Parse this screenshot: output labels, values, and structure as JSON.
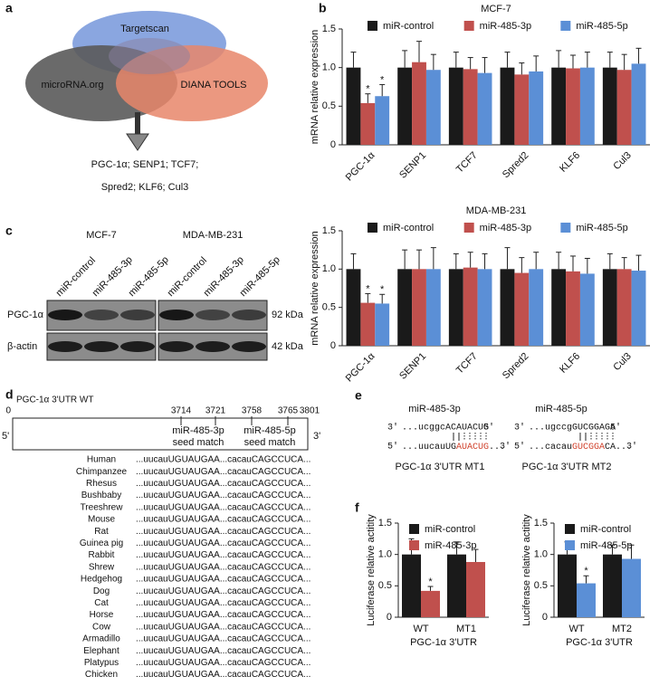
{
  "panel_labels": [
    "a",
    "b",
    "c",
    "d",
    "e",
    "f"
  ],
  "venn": {
    "sets": [
      "Targetscan",
      "microRNA.org",
      "DIANA TOOLS"
    ],
    "result": [
      "PGC-1α; SENP1; TCF7;",
      "Spred2; KLF6; Cul3"
    ]
  },
  "chart_data": [
    {
      "type": "bar",
      "title": "MCF-7",
      "y_label": "mRNA relative expression",
      "categories": [
        "PGC-1α",
        "SENP1",
        "TCF7",
        "Spred2",
        "KLF6",
        "Cul3"
      ],
      "series": [
        {
          "name": "miR-control",
          "color": "#1a1a1a",
          "values": [
            1.0,
            1.0,
            1.0,
            1.0,
            1.0,
            1.0
          ],
          "errors": [
            0.2,
            0.22,
            0.2,
            0.2,
            0.22,
            0.2
          ]
        },
        {
          "name": "miR-485-3p",
          "color": "#c0504d",
          "values": [
            0.54,
            1.07,
            0.98,
            0.91,
            0.99,
            0.97
          ],
          "errors": [
            0.12,
            0.27,
            0.15,
            0.15,
            0.17,
            0.2
          ]
        },
        {
          "name": "miR-485-5p",
          "color": "#5b8fd6",
          "values": [
            0.63,
            0.97,
            0.93,
            0.95,
            1.0,
            1.05
          ],
          "errors": [
            0.15,
            0.2,
            0.2,
            0.2,
            0.2,
            0.2
          ]
        }
      ],
      "annotations": [
        {
          "text": "*",
          "series": 1,
          "category": 0
        },
        {
          "text": "*",
          "series": 2,
          "category": 0
        }
      ],
      "ylim": [
        0,
        1.5
      ],
      "yticks": [
        0,
        0.5,
        {
          "value": 1,
          "label": "1.0"
        },
        1.5
      ],
      "legend": "top"
    },
    {
      "type": "bar",
      "title": "MDA-MB-231",
      "y_label": "mRNA relative expression",
      "categories": [
        "PGC-1α",
        "SENP1",
        "TCF7",
        "Spred2",
        "KLF6",
        "Cul3"
      ],
      "series": [
        {
          "name": "miR-control",
          "color": "#1a1a1a",
          "values": [
            1.0,
            1.0,
            1.0,
            1.0,
            1.0,
            1.0
          ],
          "errors": [
            0.2,
            0.25,
            0.2,
            0.28,
            0.22,
            0.2
          ]
        },
        {
          "name": "miR-485-3p",
          "color": "#c0504d",
          "values": [
            0.56,
            1.0,
            1.02,
            0.95,
            0.97,
            1.0
          ],
          "errors": [
            0.12,
            0.25,
            0.2,
            0.2,
            0.2,
            0.15
          ]
        },
        {
          "name": "miR-485-5p",
          "color": "#5b8fd6",
          "values": [
            0.55,
            1.0,
            1.0,
            1.0,
            0.94,
            0.98
          ],
          "errors": [
            0.12,
            0.28,
            0.2,
            0.22,
            0.2,
            0.2
          ]
        }
      ],
      "annotations": [
        {
          "text": "*",
          "series": 1,
          "category": 0
        },
        {
          "text": "*",
          "series": 2,
          "category": 0
        }
      ],
      "ylim": [
        0,
        1.5
      ],
      "yticks": [
        0,
        0.5,
        {
          "value": 1,
          "label": "1.0"
        },
        1.5
      ],
      "legend": "top"
    },
    {
      "type": "bar",
      "y_label": "Luciferase relative actitity",
      "x_label": "PGC-1α 3'UTR",
      "categories": [
        "WT",
        "MT1"
      ],
      "series": [
        {
          "name": "miR-control",
          "color": "#1a1a1a",
          "values": [
            1.0,
            1.0
          ],
          "errors": [
            0.25,
            0.2
          ]
        },
        {
          "name": "miR-485-3p",
          "color": "#c0504d",
          "values": [
            0.42,
            0.88
          ],
          "errors": [
            0.07,
            0.2
          ]
        }
      ],
      "annotations": [
        {
          "text": "*",
          "series": 1,
          "category": 0
        }
      ],
      "ylim": [
        0,
        1.5
      ],
      "yticks": [
        0,
        0.5,
        {
          "value": 1,
          "label": "1.0"
        },
        1.5
      ],
      "legend": "upper left"
    },
    {
      "type": "bar",
      "y_label": "Luciferase relative actitity",
      "x_label": "PGC-1α 3'UTR",
      "categories": [
        "WT",
        "MT2"
      ],
      "series": [
        {
          "name": "miR-control",
          "color": "#1a1a1a",
          "values": [
            1.0,
            1.0
          ],
          "errors": [
            0.2,
            0.15
          ]
        },
        {
          "name": "miR-485-5p",
          "color": "#5b8fd6",
          "values": [
            0.54,
            0.93
          ],
          "errors": [
            0.12,
            0.22
          ]
        }
      ],
      "annotations": [
        {
          "text": "*",
          "series": 1,
          "category": 0
        }
      ],
      "ylim": [
        0,
        1.5
      ],
      "yticks": [
        0,
        0.5,
        {
          "value": 1,
          "label": "1.0"
        },
        1.5
      ],
      "legend": "upper left"
    }
  ],
  "western_blot": {
    "cell_lines": [
      "MCF-7",
      "MDA-MB-231"
    ],
    "lanes": [
      "miR-control",
      "miR-485-3p",
      "miR-485-5p"
    ],
    "proteins": [
      {
        "name": "PGC-1α",
        "size": "92 kDa"
      },
      {
        "name": "β-actin",
        "size": "42 kDa"
      }
    ]
  },
  "utr_map": {
    "title": "PGC-1α 3'UTR WT",
    "positions": [
      0,
      3714,
      3721,
      3758,
      3765,
      3801
    ],
    "ends": [
      "5'",
      "3'"
    ],
    "sites": [
      [
        "miR-485-3p",
        "seed match"
      ],
      [
        "miR-485-5p",
        "seed match"
      ]
    ]
  },
  "conservation": [
    {
      "species": "Human",
      "sequence": "...uucauUGUAUGAA...cacauCAGCCUCA..."
    },
    {
      "species": "Chimpanzee",
      "sequence": "...uucauUGUAUGAA...cacauCAGCCUCA..."
    },
    {
      "species": "Rhesus",
      "sequence": "...uucauUGUAUGAA...cacauCAGCCUCA..."
    },
    {
      "species": "Bushbaby",
      "sequence": "...uucauUGUAUGAA...cacauCAGCCUCA..."
    },
    {
      "species": "Treeshrew",
      "sequence": "...uucauUGUAUGAA...cacauCAGCCUCA..."
    },
    {
      "species": "Mouse",
      "sequence": "...uucauUGUAUGAA...cacauCAGCCUCA..."
    },
    {
      "species": "Rat",
      "sequence": "...uucauUGUAUGAA...cacauCAGCCUCA..."
    },
    {
      "species": "Guinea pig",
      "sequence": "...uucauUGUAUGAA...cacauCAGCCUCA..."
    },
    {
      "species": "Rabbit",
      "sequence": "...uucauUGUAUGAA...cacauCAGCCUCA..."
    },
    {
      "species": "Shrew",
      "sequence": "...uucauUGUAUGAA...cacauCAGCCUCA..."
    },
    {
      "species": "Hedgehog",
      "sequence": "...uucauUGUAUGAA...cacauCAGCCUCA..."
    },
    {
      "species": "Dog",
      "sequence": "...uucauUGUAUGAA...cacauCAGCCUCA..."
    },
    {
      "species": "Cat",
      "sequence": "...uucauUGUAUGAA...cacauCAGCCUCA..."
    },
    {
      "species": "Horse",
      "sequence": "...uucauUGUAUGAA...cacauCAGCCUCA..."
    },
    {
      "species": "Cow",
      "sequence": "...uucauUGUAUGAA...cacauCAGCCUCA..."
    },
    {
      "species": "Armadillo",
      "sequence": "...uucauUGUAUGAA...cacauCAGCCUCA..."
    },
    {
      "species": "Elephant",
      "sequence": "...uucauUGUAUGAA...cacauCAGCCUCA..."
    },
    {
      "species": "Platypus",
      "sequence": "...uucauUGUAUGAA...cacauCAGCCUCA..."
    },
    {
      "species": "Chicken",
      "sequence": "...uucauUGUAUGAA...cacauCAGCCUCA..."
    }
  ],
  "mutants": [
    {
      "mirna": "miR-485-3p",
      "mirna_row": [
        "3'",
        "...ucggcACAUACUG",
        "5'"
      ],
      "utr_row": [
        "5'",
        "...uucauUG",
        "AUACUG",
        "...",
        "3'"
      ],
      "label": "PGC-1α 3'UTR MT1"
    },
    {
      "mirna": "miR-485-5p",
      "mirna_row": [
        "3'",
        "...ugccgGUCGGAGA",
        "5'"
      ],
      "utr_row": [
        "5'",
        "...cacau",
        "GUCGGA",
        "CA...",
        "3'"
      ],
      "label": "PGC-1α 3'UTR MT2"
    }
  ]
}
